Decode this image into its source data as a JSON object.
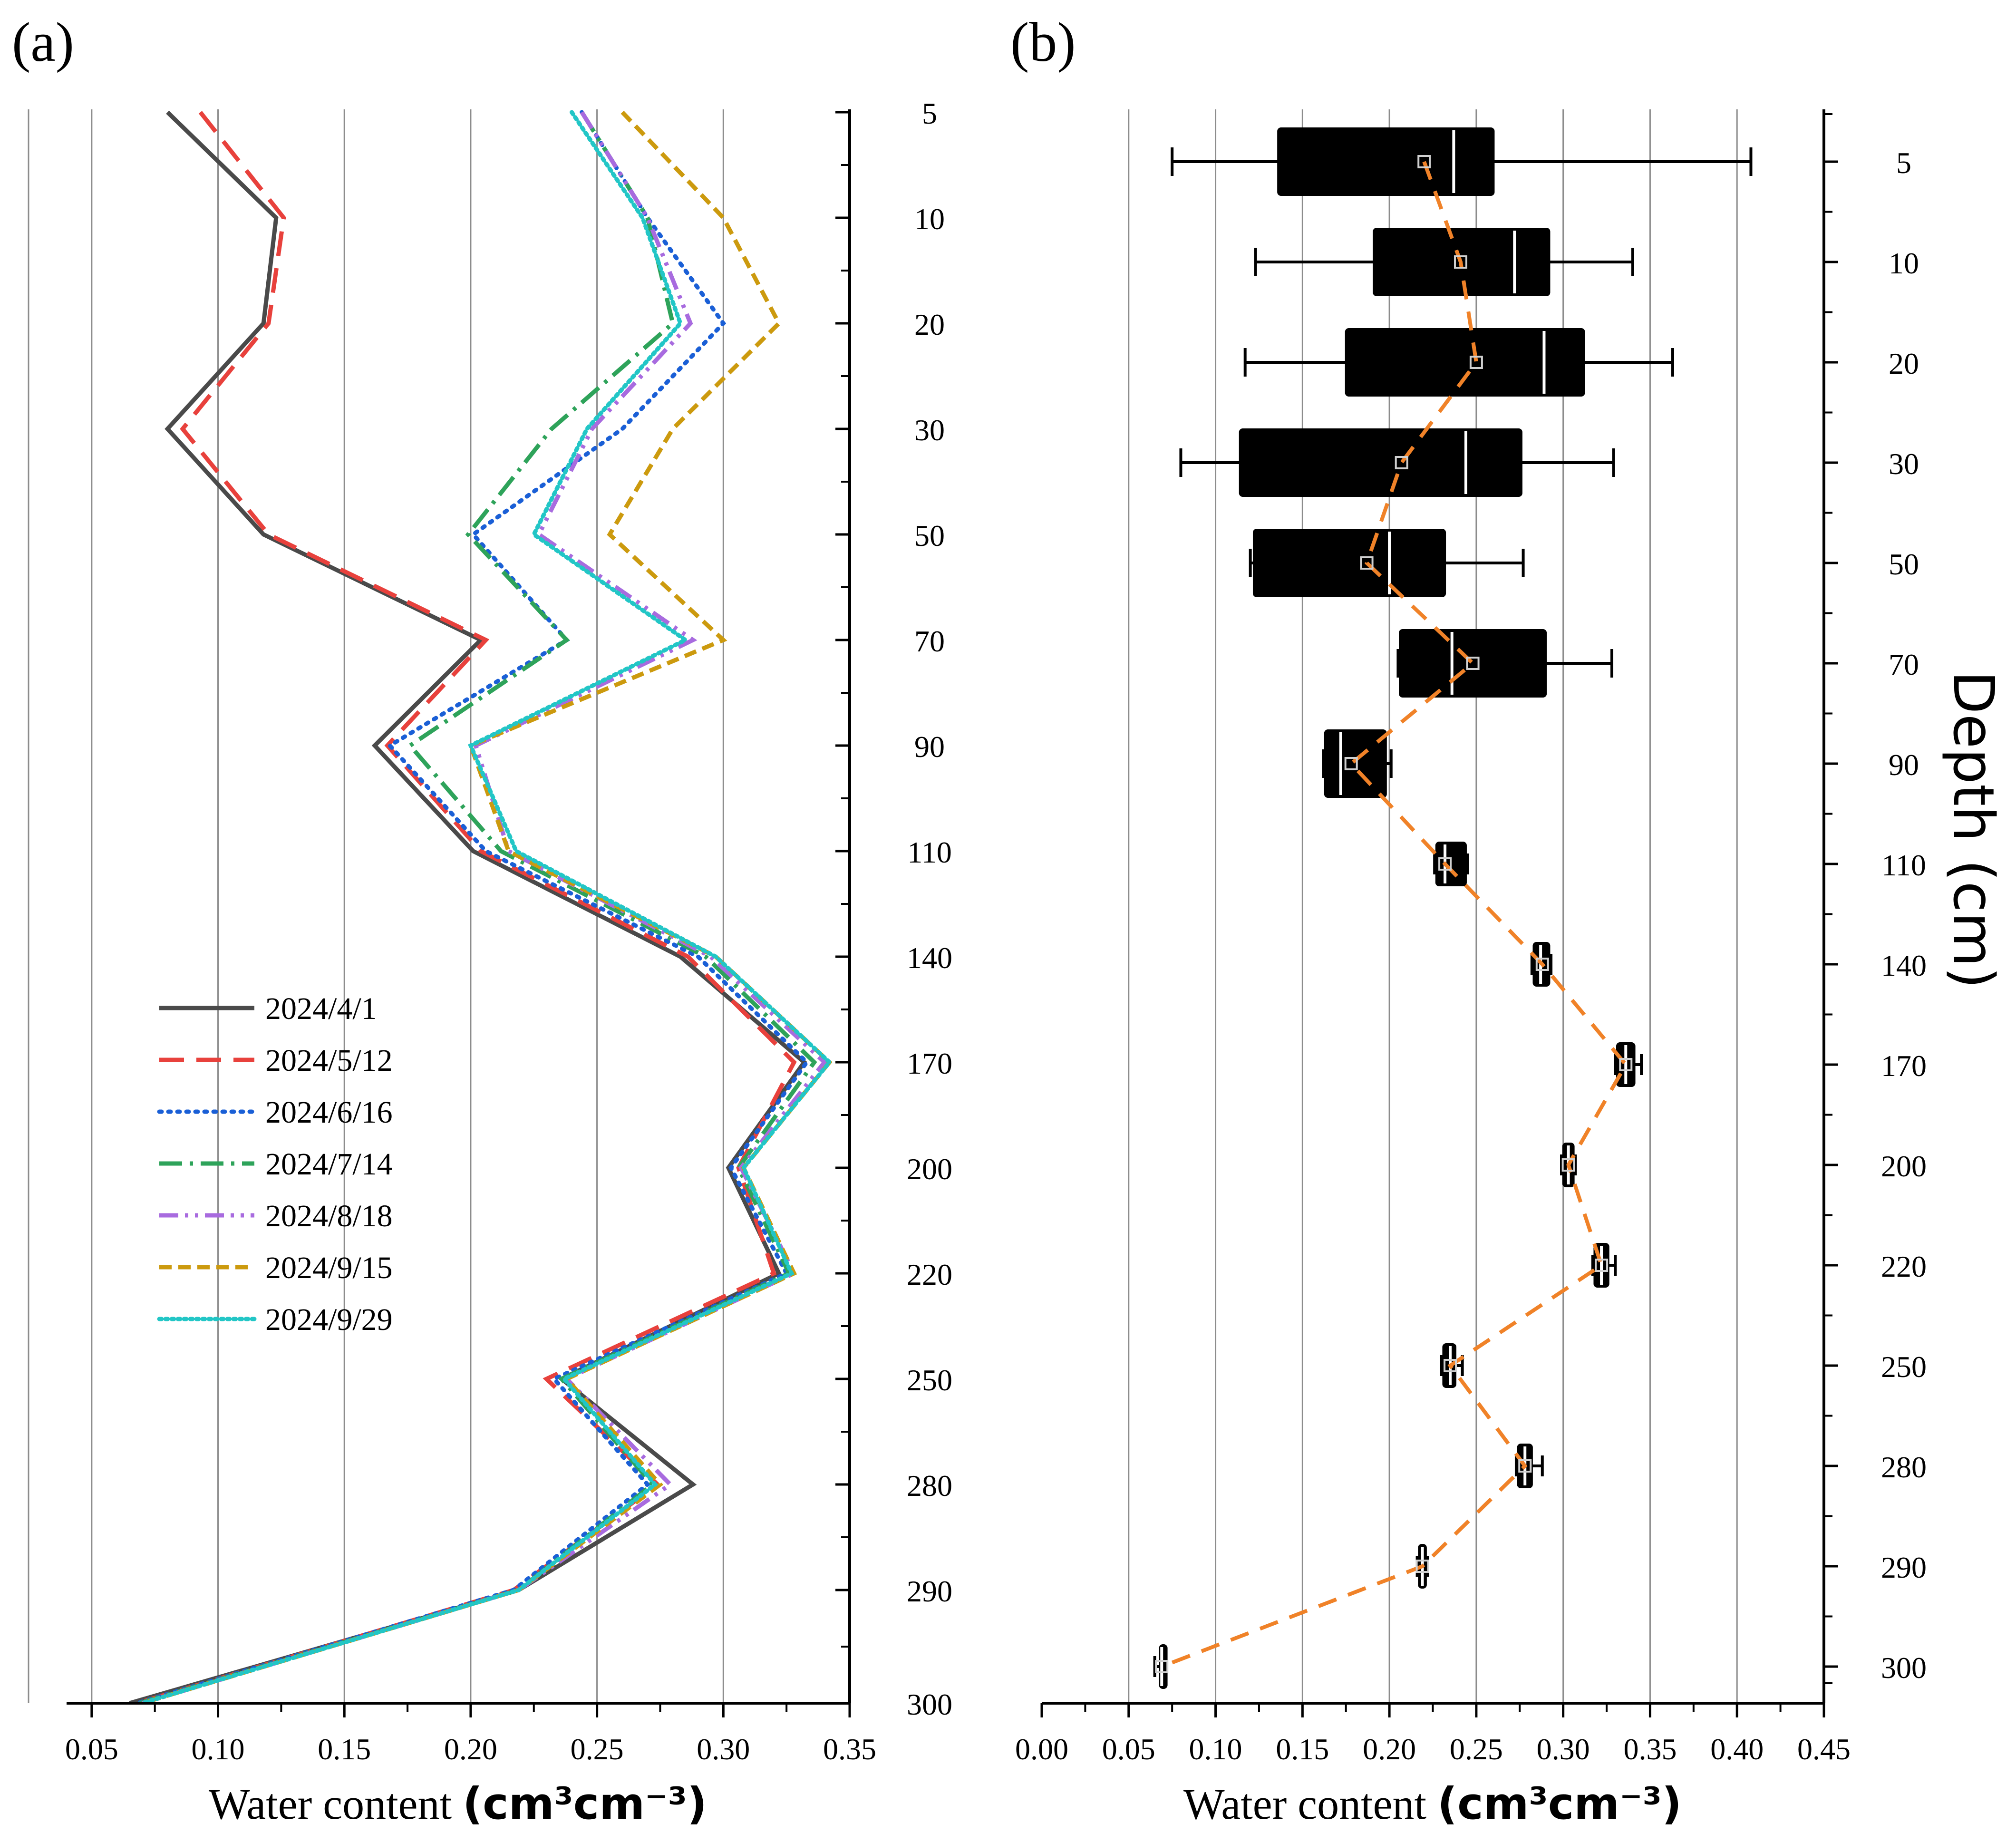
{
  "panel_a": {
    "label": "(a)",
    "xlabel_prefix": "Water content ",
    "xlabel_unit": "(cm³cm⁻³)"
  },
  "panel_b": {
    "label": "(b)",
    "xlabel_prefix": "Water content ",
    "xlabel_unit": "(cm³cm⁻³)",
    "ylabel": "Depth (cm)"
  },
  "chart_data": [
    {
      "type": "line",
      "panel": "a",
      "title": "",
      "xlabel": "Water content (cm3cm-3)",
      "ylabel": "Depth (cm)",
      "xlim": [
        0.025,
        0.35
      ],
      "xticks": [
        "0.05",
        "0.10",
        "0.15",
        "0.20",
        "0.25",
        "0.30",
        "0.35"
      ],
      "y_categories": [
        "5",
        "10",
        "20",
        "30",
        "50",
        "70",
        "90",
        "110",
        "140",
        "170",
        "200",
        "220",
        "250",
        "280",
        "290",
        "300"
      ],
      "y_axis_side": "right",
      "grid": "vertical",
      "legend_position": "left-middle",
      "series": [
        {
          "name": "2024/4/1",
          "color": "#4a4a4a",
          "dash": "solid",
          "values": [
            0.08,
            0.123,
            0.118,
            0.08,
            0.118,
            0.204,
            0.162,
            0.201,
            0.283,
            0.332,
            0.302,
            0.322,
            0.236,
            0.288,
            0.219,
            0.065
          ]
        },
        {
          "name": "2024/5/12",
          "color": "#e8413c",
          "dash": "longdash",
          "values": [
            0.093,
            0.126,
            0.12,
            0.086,
            0.12,
            0.206,
            0.167,
            0.204,
            0.286,
            0.328,
            0.306,
            0.32,
            0.23,
            0.274,
            0.217,
            0.068
          ]
        },
        {
          "name": "2024/6/16",
          "color": "#1a5fd6",
          "dash": "dot",
          "values": [
            0.244,
            0.27,
            0.3,
            0.26,
            0.201,
            0.238,
            0.168,
            0.206,
            0.29,
            0.333,
            0.303,
            0.325,
            0.233,
            0.27,
            0.217,
            0.068
          ]
        },
        {
          "name": "2024/7/14",
          "color": "#2ea35a",
          "dash": "dashdot",
          "values": [
            0.244,
            0.27,
            0.28,
            0.232,
            0.199,
            0.238,
            0.176,
            0.212,
            0.293,
            0.336,
            0.306,
            0.326,
            0.236,
            0.272,
            0.219,
            0.069
          ]
        },
        {
          "name": "2024/8/18",
          "color": "#a86bdf",
          "dash": "dashdotdot",
          "values": [
            0.244,
            0.27,
            0.287,
            0.248,
            0.227,
            0.288,
            0.202,
            0.215,
            0.295,
            0.34,
            0.307,
            0.328,
            0.238,
            0.279,
            0.219,
            0.07
          ]
        },
        {
          "name": "2024/9/15",
          "color": "#cc9a0e",
          "dash": "shortdash",
          "values": [
            0.26,
            0.3,
            0.322,
            0.28,
            0.255,
            0.3,
            0.2,
            0.215,
            0.297,
            0.342,
            0.308,
            0.328,
            0.238,
            0.275,
            0.219,
            0.07
          ]
        },
        {
          "name": "2024/9/29",
          "color": "#22c6c6",
          "dash": "densedot",
          "values": [
            0.24,
            0.268,
            0.283,
            0.246,
            0.225,
            0.285,
            0.2,
            0.218,
            0.297,
            0.342,
            0.308,
            0.327,
            0.237,
            0.273,
            0.219,
            0.07
          ]
        }
      ]
    },
    {
      "type": "box",
      "panel": "b",
      "title": "",
      "xlabel": "Water content (cm3cm-3)",
      "ylabel": "Depth (cm)",
      "xlim": [
        0,
        0.45
      ],
      "xticks": [
        "0.00",
        "0.05",
        "0.10",
        "0.15",
        "0.20",
        "0.25",
        "0.30",
        "0.35",
        "0.40",
        "0.45"
      ],
      "y_categories": [
        "5",
        "10",
        "20",
        "30",
        "50",
        "70",
        "90",
        "110",
        "140",
        "170",
        "200",
        "220",
        "250",
        "280",
        "290",
        "300"
      ],
      "y_axis_side": "right",
      "grid": "vertical",
      "mean_line_color": "#f08228",
      "boxes": [
        {
          "depth": "5",
          "whisker_low": 0.075,
          "q1": 0.136,
          "median": 0.237,
          "q3": 0.26,
          "whisker_high": 0.408,
          "mean": 0.22
        },
        {
          "depth": "10",
          "whisker_low": 0.123,
          "q1": 0.191,
          "median": 0.272,
          "q3": 0.292,
          "whisker_high": 0.34,
          "mean": 0.241
        },
        {
          "depth": "20",
          "whisker_low": 0.117,
          "q1": 0.175,
          "median": 0.289,
          "q3": 0.312,
          "whisker_high": 0.363,
          "mean": 0.25
        },
        {
          "depth": "30",
          "whisker_low": 0.08,
          "q1": 0.114,
          "median": 0.244,
          "q3": 0.276,
          "whisker_high": 0.329,
          "mean": 0.207
        },
        {
          "depth": "50",
          "whisker_low": 0.12,
          "q1": 0.122,
          "median": 0.2,
          "q3": 0.232,
          "whisker_high": 0.277,
          "mean": 0.187
        },
        {
          "depth": "70",
          "whisker_low": 0.205,
          "q1": 0.206,
          "median": 0.236,
          "q3": 0.29,
          "whisker_high": 0.328,
          "mean": 0.248
        },
        {
          "depth": "90",
          "whisker_low": 0.162,
          "q1": 0.163,
          "median": 0.172,
          "q3": 0.198,
          "whisker_high": 0.201,
          "mean": 0.178
        },
        {
          "depth": "110",
          "whisker_low": 0.226,
          "q1": 0.227,
          "median": 0.232,
          "q3": 0.244,
          "whisker_high": 0.245,
          "mean": 0.232
        },
        {
          "depth": "140",
          "whisker_low": 0.282,
          "q1": 0.283,
          "median": 0.287,
          "q3": 0.292,
          "whisker_high": 0.293,
          "mean": 0.288
        },
        {
          "depth": "170",
          "whisker_low": 0.33,
          "q1": 0.331,
          "median": 0.336,
          "q3": 0.341,
          "whisker_high": 0.345,
          "mean": 0.336
        },
        {
          "depth": "200",
          "whisker_low": 0.299,
          "q1": 0.3,
          "median": 0.303,
          "q3": 0.306,
          "whisker_high": 0.307,
          "mean": 0.303
        },
        {
          "depth": "220",
          "whisker_low": 0.317,
          "q1": 0.318,
          "median": 0.322,
          "q3": 0.326,
          "whisker_high": 0.33,
          "mean": 0.322
        },
        {
          "depth": "250",
          "whisker_low": 0.23,
          "q1": 0.231,
          "median": 0.235,
          "q3": 0.238,
          "whisker_high": 0.242,
          "mean": 0.235
        },
        {
          "depth": "280",
          "whisker_low": 0.273,
          "q1": 0.274,
          "median": 0.278,
          "q3": 0.282,
          "whisker_high": 0.288,
          "mean": 0.278
        },
        {
          "depth": "290",
          "whisker_low": 0.216,
          "q1": 0.217,
          "median": 0.219,
          "q3": 0.221,
          "whisker_high": 0.222,
          "mean": 0.219
        },
        {
          "depth": "300",
          "whisker_low": 0.065,
          "q1": 0.068,
          "median": 0.069,
          "q3": 0.07,
          "whisker_high": 0.071,
          "mean": 0.069
        }
      ]
    }
  ]
}
